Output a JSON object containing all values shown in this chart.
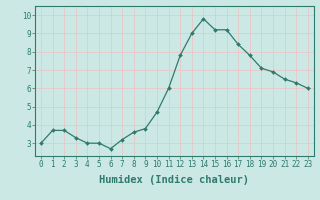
{
  "x": [
    0,
    1,
    2,
    3,
    4,
    5,
    6,
    7,
    8,
    9,
    10,
    11,
    12,
    13,
    14,
    15,
    16,
    17,
    18,
    19,
    20,
    21,
    22,
    23
  ],
  "y": [
    3.0,
    3.7,
    3.7,
    3.3,
    3.0,
    3.0,
    2.7,
    3.2,
    3.6,
    3.8,
    4.7,
    6.0,
    7.8,
    9.0,
    9.8,
    9.2,
    9.2,
    8.4,
    7.8,
    7.1,
    6.9,
    6.5,
    6.3,
    6.0
  ],
  "line_color": "#2e7b6e",
  "marker": "D",
  "marker_size": 2.0,
  "line_width": 0.9,
  "xlabel": "Humidex (Indice chaleur)",
  "xlim": [
    -0.5,
    23.5
  ],
  "ylim": [
    2.3,
    10.5
  ],
  "yticks": [
    3,
    4,
    5,
    6,
    7,
    8,
    9,
    10
  ],
  "xticks": [
    0,
    1,
    2,
    3,
    4,
    5,
    6,
    7,
    8,
    9,
    10,
    11,
    12,
    13,
    14,
    15,
    16,
    17,
    18,
    19,
    20,
    21,
    22,
    23
  ],
  "bg_color": "#cce8e4",
  "grid_color": "#e8c8c8",
  "tick_label_fontsize": 5.5,
  "xlabel_fontsize": 7.5,
  "tick_color": "#2e7b6e",
  "spine_color": "#2e7b6e"
}
